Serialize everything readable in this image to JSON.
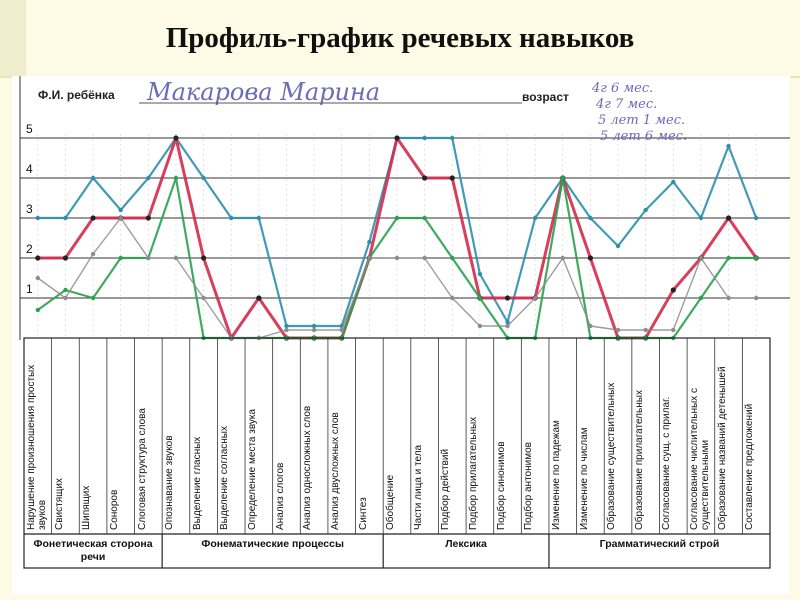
{
  "title": "Профиль-график речевых навыков",
  "header": {
    "name_label": "Ф.И. ребёнка",
    "name_value": "Макарова Марина",
    "age_label": "возраст",
    "age_values": [
      "4г 6 мес.",
      "4г 7 мес.",
      "5 лет 1 мес.",
      "5 лет 6 мес."
    ]
  },
  "colors": {
    "series_1": "#2d8fae",
    "series_2": "#d32a4a",
    "series_3": "#29a24f",
    "series_4": "#8c8c8c",
    "brand_bg": "#fdfbe6"
  },
  "chart_data": {
    "type": "line",
    "ylim": [
      0,
      5
    ],
    "y_ticks": [
      "1",
      "2",
      "3",
      "4",
      "5"
    ],
    "grid": true,
    "categories": [
      "Нарушение произношения простых звуков",
      "Свистящих",
      "Шипящих",
      "Соноров",
      "Слоговая структура слова",
      "Опознавание звуков",
      "Выделение гласных",
      "Выделение согласных",
      "Определение места звука",
      "Анализ слогов",
      "Анализ односложных слов",
      "Анализ двусложных слов",
      "Синтез",
      "Обобщение",
      "Части лица и тела",
      "Подбор действий",
      "Подбор прилагательных",
      "Подбор синонимов",
      "Подбор антонимов",
      "Изменение по падежам",
      "Изменение по числам",
      "Образование существительных",
      "Образование прилагательных",
      "Согласование сущ. с прилаг.",
      "Согласование числительных с существительными",
      "Образование названий детенышей",
      "Составление предложений"
    ],
    "category_groups": [
      {
        "label": "Фонетическая сторона речи",
        "span": 5
      },
      {
        "label": "Фонематические процессы",
        "span": 8
      },
      {
        "label": "Лексика",
        "span": 6
      },
      {
        "label": "Грамматический строй",
        "span": 8
      }
    ],
    "series": [
      {
        "values": [
          3,
          3,
          4,
          3.2,
          4,
          5,
          4,
          3,
          3,
          0.3,
          0.3,
          0.3,
          2.4,
          5,
          5,
          5,
          1.6,
          0.4,
          3,
          4,
          3,
          2.3,
          3.2,
          3.9,
          3,
          4.8,
          3
        ]
      },
      {
        "values": [
          2,
          2,
          3,
          3,
          3,
          5,
          2,
          0,
          1,
          0,
          0,
          0,
          2,
          5,
          4,
          4,
          1,
          1,
          1,
          4,
          2,
          0,
          0,
          1.2,
          2,
          3,
          2
        ]
      },
      {
        "values": [
          0.7,
          1.2,
          1,
          2,
          2,
          4,
          0,
          0,
          0,
          0,
          0,
          0,
          2,
          3,
          3,
          2,
          1,
          0,
          0,
          4,
          0,
          0,
          0,
          0,
          1,
          2,
          2
        ]
      },
      {
        "values": [
          1.5,
          1,
          2.1,
          3,
          2,
          2,
          1,
          0,
          0,
          0.2,
          0.2,
          0.2,
          2,
          2,
          2,
          1,
          0.3,
          0.3,
          1,
          2,
          0.3,
          0.2,
          0.2,
          0.2,
          2,
          1,
          1
        ]
      }
    ]
  }
}
